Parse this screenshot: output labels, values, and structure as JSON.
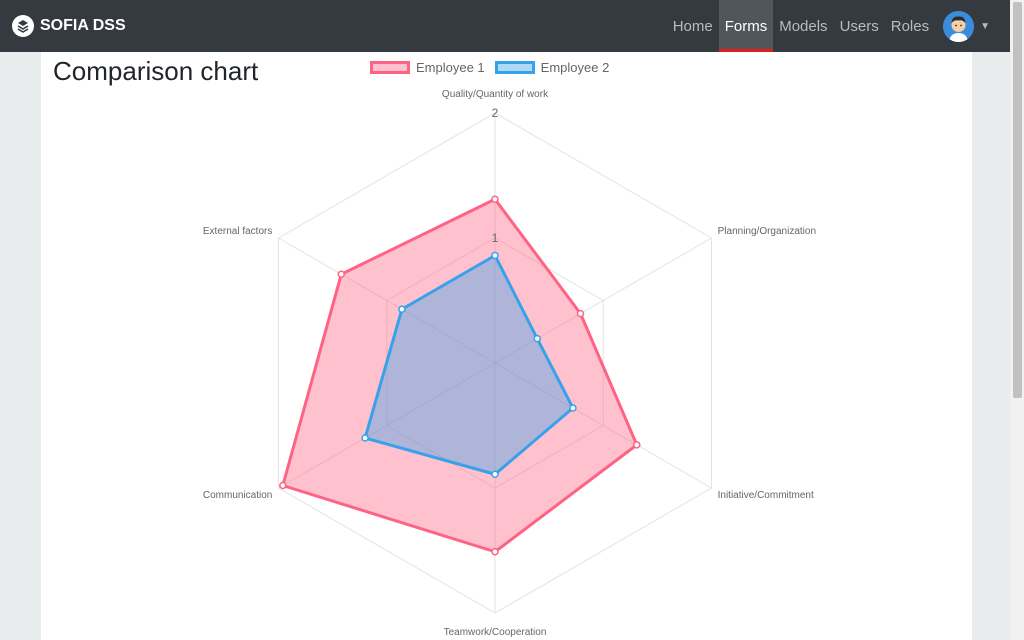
{
  "brand": {
    "name": "SOFIA DSS"
  },
  "nav": {
    "items": [
      {
        "label": "Home",
        "active": false
      },
      {
        "label": "Forms",
        "active": true
      },
      {
        "label": "Models",
        "active": false
      },
      {
        "label": "Users",
        "active": false
      },
      {
        "label": "Roles",
        "active": false
      }
    ]
  },
  "page": {
    "title": "Comparison chart"
  },
  "chart_data": {
    "type": "radar",
    "axes": [
      "Quality/Quantity of work",
      "Planning/Organization",
      "Initiative/Commitment",
      "Teamwork/Cooperation",
      "Communication",
      "External factors"
    ],
    "rlim": [
      0,
      2
    ],
    "ticks": [
      "1",
      "2"
    ],
    "grid": true,
    "legend": "top",
    "series": [
      {
        "name": "Employee 1",
        "values": [
          1.31,
          0.79,
          1.31,
          1.51,
          1.96,
          1.42
        ],
        "color": "#ff6384"
      },
      {
        "name": "Employee 2",
        "values": [
          0.86,
          0.39,
          0.72,
          0.89,
          1.2,
          0.86
        ],
        "color": "#36a2eb"
      }
    ]
  }
}
